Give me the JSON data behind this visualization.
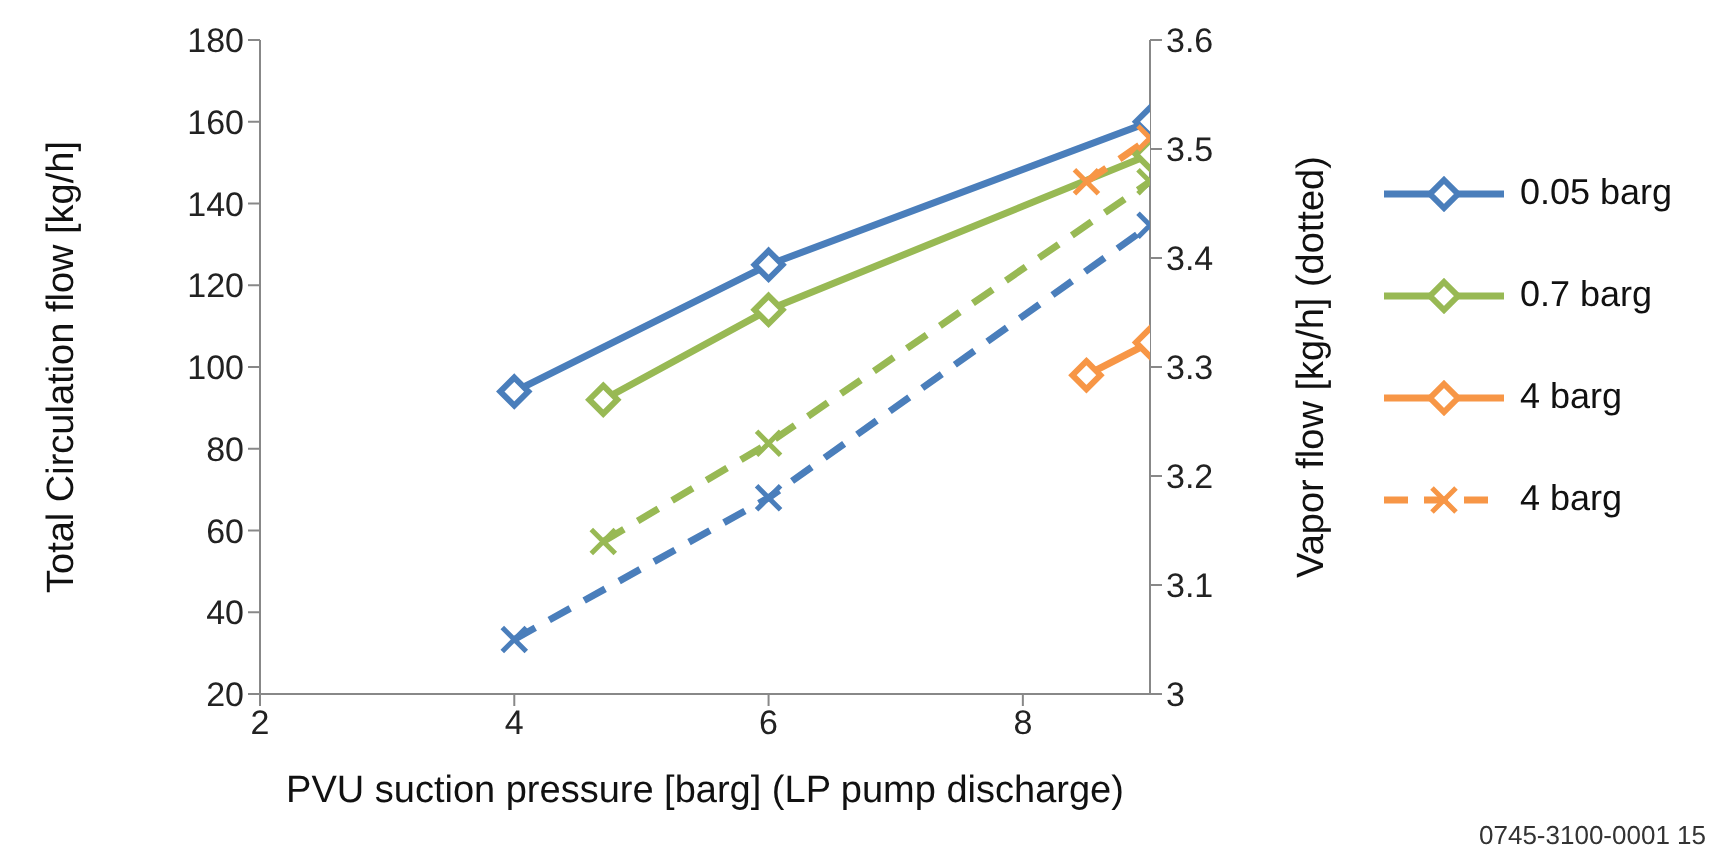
{
  "chart_data": {
    "type": "line",
    "xlabel": "PVU suction pressure [barg] (LP pump discharge)",
    "ylabel": "Total Circulation flow [kg/h]",
    "y2label": "Vapor flow [kg/h] (dotted)",
    "xlim": [
      2,
      9
    ],
    "xticks": [
      2,
      4,
      6,
      8
    ],
    "ylim": [
      20,
      180
    ],
    "yticks": [
      20,
      40,
      60,
      80,
      100,
      120,
      140,
      160,
      180
    ],
    "y2lim": [
      3,
      3.6
    ],
    "y2ticks": [
      3,
      3.1,
      3.2,
      3.3,
      3.4,
      3.5,
      3.6
    ],
    "legend": "right",
    "series": [
      {
        "name": "0.05 barg",
        "color": "#4a7ebb",
        "x": [
          4,
          6,
          9
        ],
        "values": [
          94,
          125,
          160
        ],
        "marker": "diamond",
        "line_style": "solid"
      },
      {
        "name": "0.7 barg",
        "color": "#98b954",
        "x": [
          4.7,
          6,
          9
        ],
        "values": [
          92,
          114,
          152
        ],
        "marker": "diamond",
        "line_style": "solid"
      },
      {
        "name": "4 barg",
        "color": "#f79646",
        "x": [
          8.5,
          9
        ],
        "values": [
          98,
          106
        ],
        "marker": "diamond",
        "line_style": "solid"
      },
      {
        "color": "#4a7ebb",
        "x": [
          4,
          6,
          9
        ],
        "values": [
          3.05,
          3.18,
          3.43
        ],
        "axis": "y2",
        "marker": "cross",
        "line_style": "dashed"
      },
      {
        "color": "#98b954",
        "x": [
          4.7,
          6,
          9
        ],
        "values": [
          3.14,
          3.23,
          3.47
        ],
        "axis": "y2",
        "marker": "cross",
        "line_style": "dashed"
      },
      {
        "name": "4 barg",
        "color": "#f79646",
        "x": [
          8.5,
          9
        ],
        "values": [
          3.47,
          3.51
        ],
        "axis": "y2",
        "marker": "cross",
        "line_style": "dashed"
      }
    ],
    "annotations": [
      "0745-3100-0001 15"
    ]
  }
}
